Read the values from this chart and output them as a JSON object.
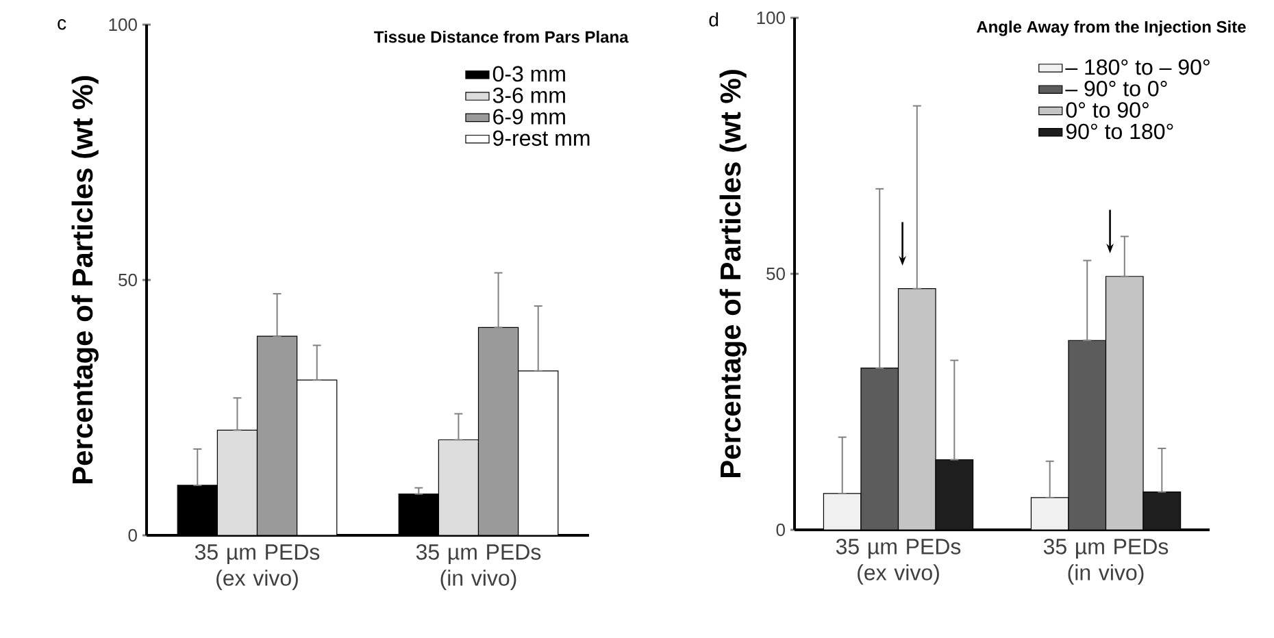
{
  "chart_data": [
    {
      "type": "bar",
      "annotations": [
        "c"
      ],
      "legend_title": "Tissue Distance from Pars Plana",
      "ylabel": "Percentage of Particles (wt %)",
      "categories": [
        "35 µm PEDs (ex vivo)",
        "35 µm PEDs (in vivo)"
      ],
      "ylim": [
        0,
        100
      ],
      "yticks": [
        0,
        50,
        100
      ],
      "legend": "top right",
      "series": [
        {
          "name": "0-3 mm",
          "color": "#000000",
          "values": [
            9.8,
            8.1
          ],
          "errors": [
            [
              9.8,
              16.9
            ],
            [
              8.1,
              9.3
            ]
          ]
        },
        {
          "name": "3-6 mm",
          "color": "#dcdcdc",
          "values": [
            20.6,
            18.7
          ],
          "errors": [
            [
              20.6,
              26.9
            ],
            [
              18.7,
              23.8
            ]
          ]
        },
        {
          "name": "6-9 mm",
          "color": "#9a9a9a",
          "values": [
            39.0,
            40.7
          ],
          "errors": [
            [
              39.0,
              47.3
            ],
            [
              40.7,
              51.4
            ]
          ]
        },
        {
          "name": "9-rest mm",
          "color": "#ffffff",
          "values": [
            30.4,
            32.2
          ],
          "errors": [
            [
              30.4,
              37.2
            ],
            [
              32.2,
              44.9
            ]
          ]
        }
      ]
    },
    {
      "type": "bar",
      "annotations": [
        "d"
      ],
      "legend_title": "Angle Away from the Injection Site",
      "ylabel": "Percentage of Particles (wt %)",
      "categories": [
        "35 µm PEDs (ex vivo)",
        "35 µm PEDs (in vivo)"
      ],
      "ylim": [
        0,
        100
      ],
      "yticks": [
        0,
        50,
        100
      ],
      "legend": "top right",
      "series": [
        {
          "name": "– 180° to – 90°",
          "color": "#f0f0f0",
          "values": [
            7.1,
            6.3
          ],
          "errors": [
            [
              7.1,
              18.1
            ],
            [
              6.3,
              13.4
            ]
          ]
        },
        {
          "name": "– 90° to  0°",
          "color": "#5c5c5c",
          "values": [
            31.6,
            37.0
          ],
          "errors": [
            [
              31.6,
              66.6
            ],
            [
              37.0,
              52.6
            ]
          ]
        },
        {
          "name": "0° to  90°",
          "color": "#c4c4c4",
          "values": [
            47.1,
            49.5
          ],
          "errors": [
            [
              47.1,
              82.8
            ],
            [
              49.5,
              57.3
            ]
          ]
        },
        {
          "name": "90° to 180°",
          "color": "#1e1e1e",
          "values": [
            13.7,
            7.4
          ],
          "errors": [
            [
              13.7,
              33.1
            ],
            [
              7.4,
              15.9
            ]
          ]
        }
      ]
    }
  ]
}
